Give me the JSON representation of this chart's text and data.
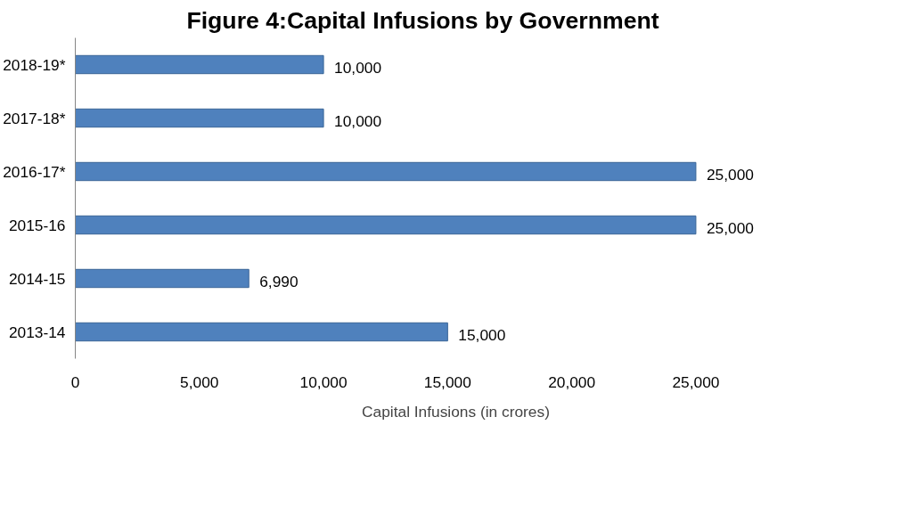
{
  "chart_data": {
    "type": "bar",
    "orientation": "horizontal",
    "title": "Figure 4:Capital Infusions by Government",
    "categories": [
      "2018-19*",
      "2017-18*",
      "2016-17*",
      "2015-16",
      "2014-15",
      "2013-14"
    ],
    "series": [
      {
        "name": "Capital Infusions (in crores)",
        "color": "#4f81bd",
        "values": [
          10000,
          10000,
          25000,
          25000,
          6990,
          15000
        ],
        "value_labels": [
          "10,000",
          "10,000",
          "25,000",
          "25,000",
          "6,990",
          "15,000"
        ]
      }
    ],
    "xlim": [
      0,
      25000
    ],
    "xticks": [
      0,
      {
        "value": 5000,
        "label": "5,000"
      },
      {
        "value": 10000,
        "label": "10,000"
      },
      {
        "value": 15000,
        "label": "15,000"
      },
      {
        "value": 20000,
        "label": "20,000"
      },
      {
        "value": 25000,
        "label": "25,000"
      }
    ],
    "grid": false,
    "legend": "bottom"
  }
}
